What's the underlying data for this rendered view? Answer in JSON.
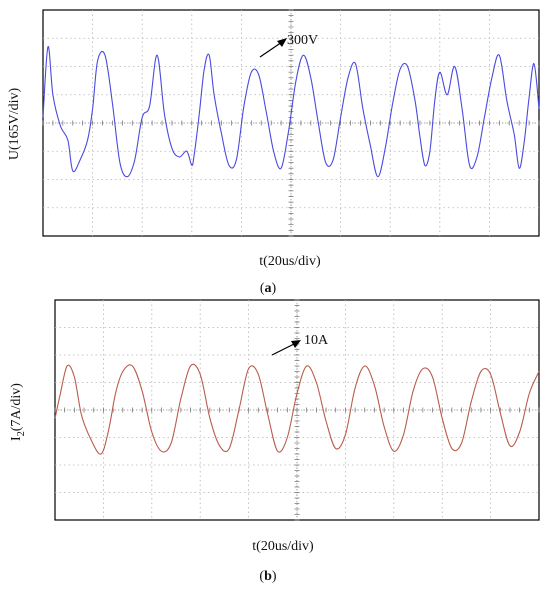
{
  "chart_data": [
    {
      "type": "line",
      "panel_label": "(a)",
      "panel_letter": "a",
      "xlabel": "t(20us/div)",
      "ylabel": "U(165V/div)",
      "annotation": "300V",
      "x_divisions": 10,
      "y_divisions": 8,
      "color": "#4a4adf",
      "series": [
        {
          "x": [
            0,
            0.1,
            0.2,
            0.35,
            0.5,
            0.6,
            0.75,
            0.9,
            1.0,
            1.1,
            1.25,
            1.4,
            1.55,
            1.7,
            1.85,
            2.0,
            2.15,
            2.3,
            2.45,
            2.6,
            2.75,
            2.9,
            3.0,
            3.05,
            3.15,
            3.25,
            3.35,
            3.45,
            3.6,
            3.75,
            3.9,
            4.05,
            4.2,
            4.35,
            4.5,
            4.65,
            4.8,
            4.95,
            5.1,
            5.25,
            5.4,
            5.55,
            5.7,
            5.85,
            6.0,
            6.15,
            6.3,
            6.45,
            6.6,
            6.75,
            6.9,
            7.05,
            7.2,
            7.35,
            7.5,
            7.6,
            7.7,
            7.8,
            7.9,
            8.0,
            8.15,
            8.3,
            8.45,
            8.6,
            8.75,
            8.9,
            9.05,
            9.2,
            9.35,
            9.5,
            9.6,
            9.7,
            9.8,
            9.9,
            10.0
          ],
          "y": [
            0.2,
            2.7,
            1.0,
            -0.1,
            -0.6,
            -1.7,
            -1.3,
            -0.6,
            0.5,
            2.2,
            2.4,
            0.7,
            -1.4,
            -1.9,
            -1.3,
            0.2,
            0.6,
            2.4,
            0.3,
            -0.9,
            -1.2,
            -1.0,
            -1.5,
            -1.1,
            0.3,
            1.9,
            2.4,
            1.0,
            -0.4,
            -1.5,
            -1.3,
            0.6,
            1.8,
            1.7,
            0.4,
            -1.0,
            -1.6,
            -0.3,
            1.5,
            2.4,
            1.6,
            0.0,
            -1.4,
            -1.3,
            0.2,
            1.6,
            2.1,
            0.5,
            -0.8,
            -1.9,
            -0.9,
            0.7,
            1.9,
            2.0,
            0.8,
            -0.5,
            -1.5,
            -1.0,
            0.8,
            1.8,
            1.0,
            2.0,
            0.5,
            -1.5,
            -1.2,
            0.2,
            1.6,
            2.4,
            0.8,
            -0.4,
            -1.6,
            -0.7,
            0.9,
            2.1,
            0.5
          ]
        }
      ]
    },
    {
      "type": "line",
      "panel_label": "(b)",
      "panel_letter": "b",
      "xlabel": "t(20us/div)",
      "ylabel_main": "I",
      "ylabel_sub": "2",
      "ylabel_rest": "(7A/div)",
      "annotation": "10A",
      "x_divisions": 10,
      "y_divisions": 8,
      "color": "#b85d4d",
      "series": [
        {
          "x": [
            0,
            0.1,
            0.25,
            0.4,
            0.55,
            0.75,
            0.95,
            1.1,
            1.25,
            1.4,
            1.6,
            1.8,
            2.0,
            2.2,
            2.4,
            2.6,
            2.8,
            3.0,
            3.2,
            3.4,
            3.6,
            3.8,
            4.0,
            4.2,
            4.4,
            4.6,
            4.8,
            5.0,
            5.2,
            5.4,
            5.6,
            5.8,
            6.0,
            6.2,
            6.4,
            6.6,
            6.8,
            7.0,
            7.2,
            7.4,
            7.6,
            7.8,
            8.0,
            8.2,
            8.4,
            8.6,
            8.8,
            9.0,
            9.2,
            9.4,
            9.6,
            9.8,
            10.0
          ],
          "y": [
            -0.3,
            0.5,
            1.6,
            1.2,
            -0.2,
            -1.1,
            -1.6,
            -0.8,
            0.6,
            1.4,
            1.6,
            0.7,
            -0.8,
            -1.5,
            -1.2,
            0.4,
            1.6,
            1.3,
            -0.3,
            -1.3,
            -1.4,
            0.0,
            1.5,
            1.3,
            -0.2,
            -1.5,
            -1.0,
            0.6,
            1.6,
            1.0,
            -0.4,
            -1.4,
            -0.9,
            0.8,
            1.6,
            0.9,
            -0.6,
            -1.5,
            -0.9,
            0.7,
            1.5,
            1.2,
            -0.3,
            -1.4,
            -1.2,
            0.3,
            1.4,
            1.3,
            -0.1,
            -1.3,
            -0.8,
            0.6,
            1.4
          ]
        }
      ]
    }
  ]
}
